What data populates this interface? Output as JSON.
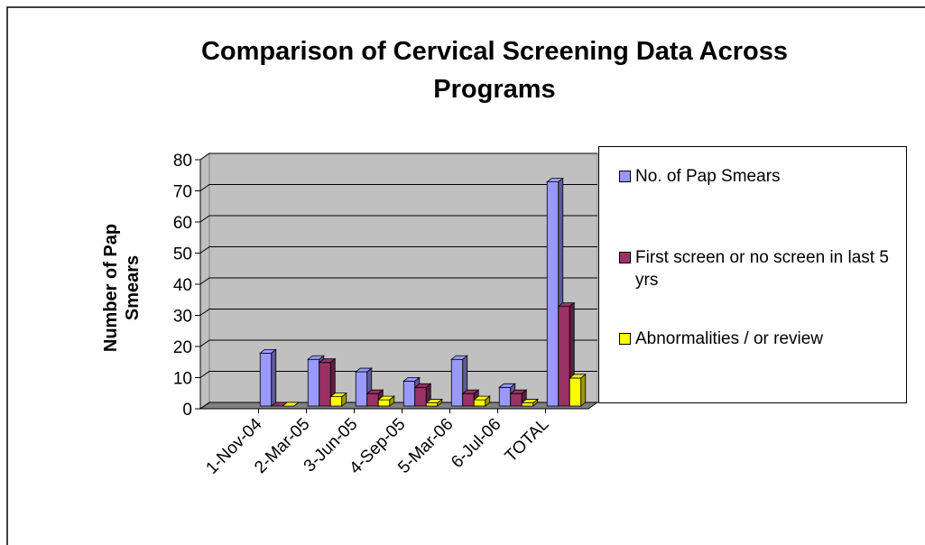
{
  "chart_data": {
    "type": "bar",
    "title": "Comparison of Cervical Screening Data Across Programs",
    "ylabel": "Number of Pap Smears",
    "categories": [
      "1-Nov-04",
      "2-Mar-05",
      "3-Jun-05",
      "4-Sep-05",
      "5-Mar-06",
      "6-Jul-06",
      "TOTAL"
    ],
    "series": [
      {
        "name": "No. of Pap Smears",
        "color": "#9999ff",
        "values": [
          17,
          15,
          11,
          8,
          15,
          6,
          72
        ]
      },
      {
        "name": "First screen or no screen in last 5 yrs",
        "color": "#993366",
        "values": [
          0,
          14,
          4,
          6,
          4,
          4,
          32
        ]
      },
      {
        "name": "Abnormalities / or review",
        "color": "#ffff00",
        "values": [
          0,
          3,
          2,
          1,
          2,
          1,
          9
        ]
      }
    ],
    "ylim": [
      0,
      80
    ],
    "yticks": [
      0,
      10,
      20,
      30,
      40,
      50,
      60,
      70,
      80
    ],
    "grid": true,
    "legend": "right"
  }
}
